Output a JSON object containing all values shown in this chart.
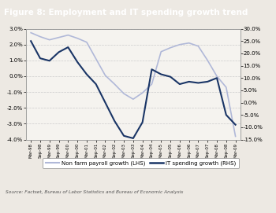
{
  "title": "Figure 8: Employment and IT spending growth trend",
  "source": "Source: Factset, Bureau of Labor Statistics and Bureau of Economic Analysis",
  "title_bg": "#1a3566",
  "title_color": "#ffffff",
  "x_labels": [
    "Mar-98",
    "Sep-98",
    "Mar-99",
    "Sep-99",
    "Mar-00",
    "Sep-00",
    "Mar-01",
    "Sep-01",
    "Mar-02",
    "Sep-02",
    "Mar-03",
    "Sep-03",
    "Mar-04",
    "Sep-04",
    "Mar-05",
    "Sep-05",
    "Mar-06",
    "Sep-06",
    "Mar-07",
    "Sep-07",
    "Mar-08",
    "Sep-08",
    "Mar-09"
  ],
  "lhs_data": [
    2.75,
    2.5,
    2.3,
    2.45,
    2.6,
    2.4,
    2.15,
    1.1,
    0.05,
    -0.5,
    -1.1,
    -1.45,
    -1.05,
    -0.5,
    1.55,
    1.8,
    2.0,
    2.1,
    1.9,
    1.0,
    0.0,
    -0.7,
    -3.8
  ],
  "rhs_data": [
    25.0,
    18.0,
    17.0,
    20.5,
    22.5,
    16.5,
    11.5,
    7.5,
    0.0,
    -7.5,
    -13.5,
    -14.5,
    -8.0,
    13.5,
    11.5,
    10.5,
    7.5,
    8.5,
    8.0,
    8.5,
    10.0,
    -5.0,
    -9.0
  ],
  "lhs_color": "#b0b8d8",
  "rhs_color": "#1a3566",
  "lhs_ylim": [
    -4.0,
    3.0
  ],
  "rhs_ylim": [
    -15.0,
    30.0
  ],
  "lhs_yticks": [
    -4.0,
    -3.0,
    -2.0,
    -1.0,
    0.0,
    1.0,
    2.0,
    3.0
  ],
  "rhs_yticks": [
    -15.0,
    -10.0,
    -5.0,
    0.0,
    5.0,
    10.0,
    15.0,
    20.0,
    25.0,
    30.0
  ],
  "bg_color": "#ede9e3",
  "plot_bg": "#f5f3ef",
  "grid_color": "#cccccc"
}
